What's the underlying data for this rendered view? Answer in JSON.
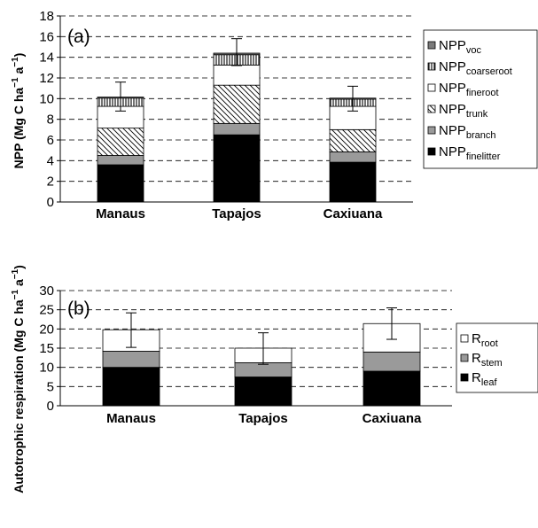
{
  "chart_data": [
    {
      "type": "bar",
      "stacked": true,
      "panel_label": "(a)",
      "ylabel": {
        "main": "NPP (Mg C ha",
        "sup1": "−1",
        "mid": " a",
        "sup2": "−1",
        "end": ")"
      },
      "ylim": [
        0,
        18
      ],
      "yticks": [
        "0",
        "2",
        "4",
        "6",
        "8",
        "10",
        "12",
        "14",
        "16",
        "18"
      ],
      "grid": "dashed-horizontal",
      "legend_position": "right",
      "categories": [
        "Manaus",
        "Tapajos",
        "Caxiuana"
      ],
      "series": [
        {
          "name": "NPP",
          "sub": "finelitter",
          "fill": "solid-black",
          "values": [
            3.6,
            6.5,
            3.85
          ]
        },
        {
          "name": "NPP",
          "sub": "branch",
          "fill": "solid-grey",
          "values": [
            0.9,
            1.1,
            1.0
          ]
        },
        {
          "name": "NPP",
          "sub": "trunk",
          "fill": "diagonal-hatch",
          "values": [
            2.65,
            3.7,
            2.15
          ]
        },
        {
          "name": "NPP",
          "sub": "fineroot",
          "fill": "white",
          "values": [
            2.1,
            1.95,
            2.25
          ]
        },
        {
          "name": "NPP",
          "sub": "coarseroot",
          "fill": "vertical-hatch",
          "values": [
            0.8,
            1.0,
            0.7
          ]
        },
        {
          "name": "NPP",
          "sub": "voc",
          "fill": "dark-grey",
          "values": [
            0.1,
            0.15,
            0.1
          ]
        }
      ],
      "error_bars": [
        {
          "category": "Manaus",
          "top": 11.6,
          "bottom": 8.8
        },
        {
          "category": "Tapajos",
          "top": 15.8,
          "bottom": 13.2
        },
        {
          "category": "Caxiuana",
          "top": 11.2,
          "bottom": 8.8
        }
      ]
    },
    {
      "type": "bar",
      "stacked": true,
      "panel_label": "(b)",
      "ylabel": {
        "main": "Autotrophic respiration (Mg C ha",
        "sup1": "−1",
        "mid": " a",
        "sup2": "−1",
        "end": ")"
      },
      "ylim": [
        0,
        30
      ],
      "yticks": [
        "0",
        "5",
        "10",
        "15",
        "20",
        "25",
        "30"
      ],
      "grid": "dashed-horizontal",
      "legend_position": "right",
      "categories": [
        "Manaus",
        "Tapajos",
        "Caxiuana"
      ],
      "series": [
        {
          "name": "R",
          "sub": "leaf",
          "fill": "solid-black",
          "values": [
            10.0,
            7.5,
            9.0
          ]
        },
        {
          "name": "R",
          "sub": "stem",
          "fill": "solid-grey",
          "values": [
            4.2,
            3.7,
            5.0
          ]
        },
        {
          "name": "R",
          "sub": "root",
          "fill": "white",
          "values": [
            5.6,
            3.8,
            7.4
          ]
        }
      ],
      "error_bars": [
        {
          "category": "Manaus",
          "top": 24.2,
          "bottom": 15.2
        },
        {
          "category": "Tapajos",
          "top": 19.0,
          "bottom": 10.8
        },
        {
          "category": "Caxiuana",
          "top": 25.5,
          "bottom": 17.3
        }
      ]
    }
  ]
}
